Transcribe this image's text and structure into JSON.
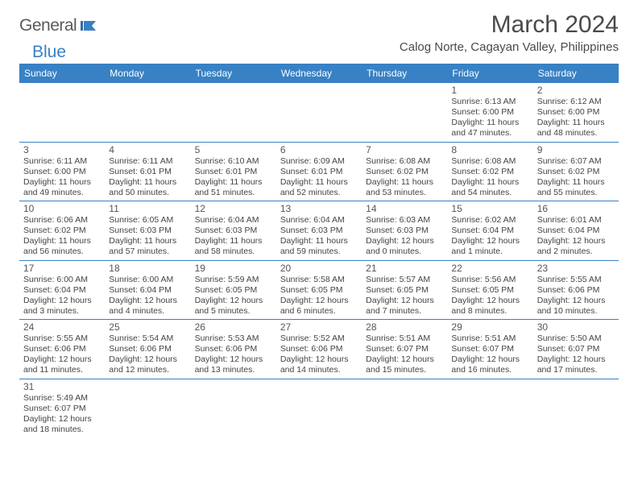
{
  "logo": {
    "text1": "General",
    "text2": "Blue"
  },
  "title": "March 2024",
  "location": "Calog Norte, Cagayan Valley, Philippines",
  "weekdays": [
    "Sunday",
    "Monday",
    "Tuesday",
    "Wednesday",
    "Thursday",
    "Friday",
    "Saturday"
  ],
  "colors": {
    "header_bg": "#3881c4",
    "header_text": "#ffffff",
    "border": "#3881c4"
  },
  "startOffset": 5,
  "days": [
    {
      "n": "1",
      "sunrise": "Sunrise: 6:13 AM",
      "sunset": "Sunset: 6:00 PM",
      "day1": "Daylight: 11 hours",
      "day2": "and 47 minutes."
    },
    {
      "n": "2",
      "sunrise": "Sunrise: 6:12 AM",
      "sunset": "Sunset: 6:00 PM",
      "day1": "Daylight: 11 hours",
      "day2": "and 48 minutes."
    },
    {
      "n": "3",
      "sunrise": "Sunrise: 6:11 AM",
      "sunset": "Sunset: 6:00 PM",
      "day1": "Daylight: 11 hours",
      "day2": "and 49 minutes."
    },
    {
      "n": "4",
      "sunrise": "Sunrise: 6:11 AM",
      "sunset": "Sunset: 6:01 PM",
      "day1": "Daylight: 11 hours",
      "day2": "and 50 minutes."
    },
    {
      "n": "5",
      "sunrise": "Sunrise: 6:10 AM",
      "sunset": "Sunset: 6:01 PM",
      "day1": "Daylight: 11 hours",
      "day2": "and 51 minutes."
    },
    {
      "n": "6",
      "sunrise": "Sunrise: 6:09 AM",
      "sunset": "Sunset: 6:01 PM",
      "day1": "Daylight: 11 hours",
      "day2": "and 52 minutes."
    },
    {
      "n": "7",
      "sunrise": "Sunrise: 6:08 AM",
      "sunset": "Sunset: 6:02 PM",
      "day1": "Daylight: 11 hours",
      "day2": "and 53 minutes."
    },
    {
      "n": "8",
      "sunrise": "Sunrise: 6:08 AM",
      "sunset": "Sunset: 6:02 PM",
      "day1": "Daylight: 11 hours",
      "day2": "and 54 minutes."
    },
    {
      "n": "9",
      "sunrise": "Sunrise: 6:07 AM",
      "sunset": "Sunset: 6:02 PM",
      "day1": "Daylight: 11 hours",
      "day2": "and 55 minutes."
    },
    {
      "n": "10",
      "sunrise": "Sunrise: 6:06 AM",
      "sunset": "Sunset: 6:02 PM",
      "day1": "Daylight: 11 hours",
      "day2": "and 56 minutes."
    },
    {
      "n": "11",
      "sunrise": "Sunrise: 6:05 AM",
      "sunset": "Sunset: 6:03 PM",
      "day1": "Daylight: 11 hours",
      "day2": "and 57 minutes."
    },
    {
      "n": "12",
      "sunrise": "Sunrise: 6:04 AM",
      "sunset": "Sunset: 6:03 PM",
      "day1": "Daylight: 11 hours",
      "day2": "and 58 minutes."
    },
    {
      "n": "13",
      "sunrise": "Sunrise: 6:04 AM",
      "sunset": "Sunset: 6:03 PM",
      "day1": "Daylight: 11 hours",
      "day2": "and 59 minutes."
    },
    {
      "n": "14",
      "sunrise": "Sunrise: 6:03 AM",
      "sunset": "Sunset: 6:03 PM",
      "day1": "Daylight: 12 hours",
      "day2": "and 0 minutes."
    },
    {
      "n": "15",
      "sunrise": "Sunrise: 6:02 AM",
      "sunset": "Sunset: 6:04 PM",
      "day1": "Daylight: 12 hours",
      "day2": "and 1 minute."
    },
    {
      "n": "16",
      "sunrise": "Sunrise: 6:01 AM",
      "sunset": "Sunset: 6:04 PM",
      "day1": "Daylight: 12 hours",
      "day2": "and 2 minutes."
    },
    {
      "n": "17",
      "sunrise": "Sunrise: 6:00 AM",
      "sunset": "Sunset: 6:04 PM",
      "day1": "Daylight: 12 hours",
      "day2": "and 3 minutes."
    },
    {
      "n": "18",
      "sunrise": "Sunrise: 6:00 AM",
      "sunset": "Sunset: 6:04 PM",
      "day1": "Daylight: 12 hours",
      "day2": "and 4 minutes."
    },
    {
      "n": "19",
      "sunrise": "Sunrise: 5:59 AM",
      "sunset": "Sunset: 6:05 PM",
      "day1": "Daylight: 12 hours",
      "day2": "and 5 minutes."
    },
    {
      "n": "20",
      "sunrise": "Sunrise: 5:58 AM",
      "sunset": "Sunset: 6:05 PM",
      "day1": "Daylight: 12 hours",
      "day2": "and 6 minutes."
    },
    {
      "n": "21",
      "sunrise": "Sunrise: 5:57 AM",
      "sunset": "Sunset: 6:05 PM",
      "day1": "Daylight: 12 hours",
      "day2": "and 7 minutes."
    },
    {
      "n": "22",
      "sunrise": "Sunrise: 5:56 AM",
      "sunset": "Sunset: 6:05 PM",
      "day1": "Daylight: 12 hours",
      "day2": "and 8 minutes."
    },
    {
      "n": "23",
      "sunrise": "Sunrise: 5:55 AM",
      "sunset": "Sunset: 6:06 PM",
      "day1": "Daylight: 12 hours",
      "day2": "and 10 minutes."
    },
    {
      "n": "24",
      "sunrise": "Sunrise: 5:55 AM",
      "sunset": "Sunset: 6:06 PM",
      "day1": "Daylight: 12 hours",
      "day2": "and 11 minutes."
    },
    {
      "n": "25",
      "sunrise": "Sunrise: 5:54 AM",
      "sunset": "Sunset: 6:06 PM",
      "day1": "Daylight: 12 hours",
      "day2": "and 12 minutes."
    },
    {
      "n": "26",
      "sunrise": "Sunrise: 5:53 AM",
      "sunset": "Sunset: 6:06 PM",
      "day1": "Daylight: 12 hours",
      "day2": "and 13 minutes."
    },
    {
      "n": "27",
      "sunrise": "Sunrise: 5:52 AM",
      "sunset": "Sunset: 6:06 PM",
      "day1": "Daylight: 12 hours",
      "day2": "and 14 minutes."
    },
    {
      "n": "28",
      "sunrise": "Sunrise: 5:51 AM",
      "sunset": "Sunset: 6:07 PM",
      "day1": "Daylight: 12 hours",
      "day2": "and 15 minutes."
    },
    {
      "n": "29",
      "sunrise": "Sunrise: 5:51 AM",
      "sunset": "Sunset: 6:07 PM",
      "day1": "Daylight: 12 hours",
      "day2": "and 16 minutes."
    },
    {
      "n": "30",
      "sunrise": "Sunrise: 5:50 AM",
      "sunset": "Sunset: 6:07 PM",
      "day1": "Daylight: 12 hours",
      "day2": "and 17 minutes."
    },
    {
      "n": "31",
      "sunrise": "Sunrise: 5:49 AM",
      "sunset": "Sunset: 6:07 PM",
      "day1": "Daylight: 12 hours",
      "day2": "and 18 minutes."
    }
  ]
}
